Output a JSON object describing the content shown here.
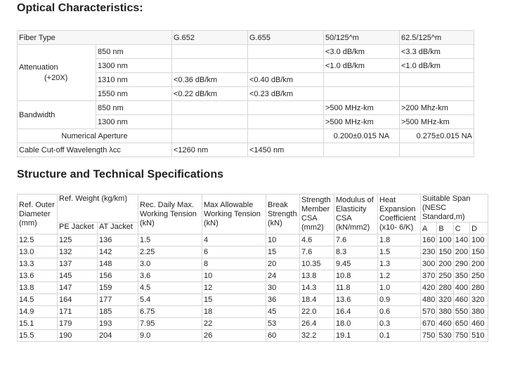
{
  "optical": {
    "title": "Optical Characteristics:",
    "fiber_type_label": "Fiber Type",
    "columns": [
      "G.652",
      "G.655",
      "50/125^m",
      "62.5/125^m"
    ],
    "attenuation_label": "Attenuation",
    "attenuation_note": "(+20X)",
    "attenuation_rows": [
      {
        "wl": "850 nm",
        "g652": "",
        "g655": "",
        "m50": "<3.0 dB/km",
        "m62": "<3.3 dB/km"
      },
      {
        "wl": "1300 nm",
        "g652": "",
        "g655": "",
        "m50": "<1.0 dB/km",
        "m62": "<1.0 dB/km"
      },
      {
        "wl": "1310 nm",
        "g652": "<0.36 dB/km",
        "g655": "<0.40 dB/km",
        "m50": "",
        "m62": ""
      },
      {
        "wl": "1550 nm",
        "g652": "<0.22 dB/km",
        "g655": "<0.23 dB/km",
        "m50": "",
        "m62": ""
      }
    ],
    "bandwidth_label": "Bandwidth",
    "bandwidth_rows": [
      {
        "wl": "850 nm",
        "m50": ">500 MHz-km",
        "m62": ">200 Mhz-km"
      },
      {
        "wl": "1300 nm",
        "m50": ">500 MHz-km",
        "m62": ">500 MHz-km"
      }
    ],
    "na_label": "Numerical Aperture",
    "na_m50": "0.200±0.015 NA",
    "na_m62": "0.275±0.015 NA",
    "cutoff_label": "Cable Cut-off Wavelength λcc",
    "cutoff_g652": "<1260 nm",
    "cutoff_g655": "<1450 nm"
  },
  "spec": {
    "title": "Structure and Technical Specifications",
    "headers": {
      "outer_dia": "Ref. Outer Diameter (mm)",
      "weight": "Ref. Weight (kg/km)",
      "pe": "PE Jacket",
      "at": "AT Jacket",
      "daily": "Rec. Daily Max. Working Tension (kN)",
      "max_tension": "Max Allowable Working Tension (kN)",
      "break": "Break Strength (kN)",
      "csa": "Strength Member CSA (mm2)",
      "modulus": "Modulus of Elasticity CSA (kN/mm2)",
      "heat": "Heat Expansion Coefficient (x10- 6/K)",
      "span": "Suitable Span (NESC Standard,m)",
      "a": "A",
      "b": "B",
      "c": "C",
      "d": "D"
    },
    "rows": [
      [
        "12.5",
        "125",
        "136",
        "1.5",
        "4",
        "10",
        "4.6",
        "7.6",
        "1.8",
        "160",
        "100",
        "140",
        "100"
      ],
      [
        "13.0",
        "132",
        "142",
        "2.25",
        "6",
        "15",
        "7.6",
        "8.3",
        "1.5",
        "230",
        "150",
        "200",
        "150"
      ],
      [
        "13.3",
        "137",
        "148",
        "3.0",
        "8",
        "20",
        "10.35",
        "9.45",
        "1.3",
        "300",
        "200",
        "290",
        "200"
      ],
      [
        "13.6",
        "145",
        "156",
        "3.6",
        "10",
        "24",
        "13.8",
        "10.8",
        "1.2",
        "370",
        "250",
        "350",
        "250"
      ],
      [
        "13.8",
        "147",
        "159",
        "4.5",
        "12",
        "30",
        "14.3",
        "11.8",
        "1.0",
        "420",
        "280",
        "400",
        "280"
      ],
      [
        "14.5",
        "164",
        "177",
        "5.4",
        "15",
        "36",
        "18.4",
        "13.6",
        "0.9",
        "480",
        "320",
        "460",
        "320"
      ],
      [
        "14.9",
        "171",
        "185",
        "6.75",
        "18",
        "45",
        "22.0",
        "16.4",
        "0.6",
        "570",
        "380",
        "550",
        "380"
      ],
      [
        "15.1",
        "179",
        "193",
        "7.95",
        "22",
        "53",
        "26.4",
        "18.0",
        "0.3",
        "670",
        "460",
        "650",
        "460"
      ],
      [
        "15.5",
        "190",
        "204",
        "9.0",
        "26",
        "60",
        "32.2",
        "19.1",
        "0.1",
        "750",
        "530",
        "750",
        "510"
      ]
    ]
  }
}
